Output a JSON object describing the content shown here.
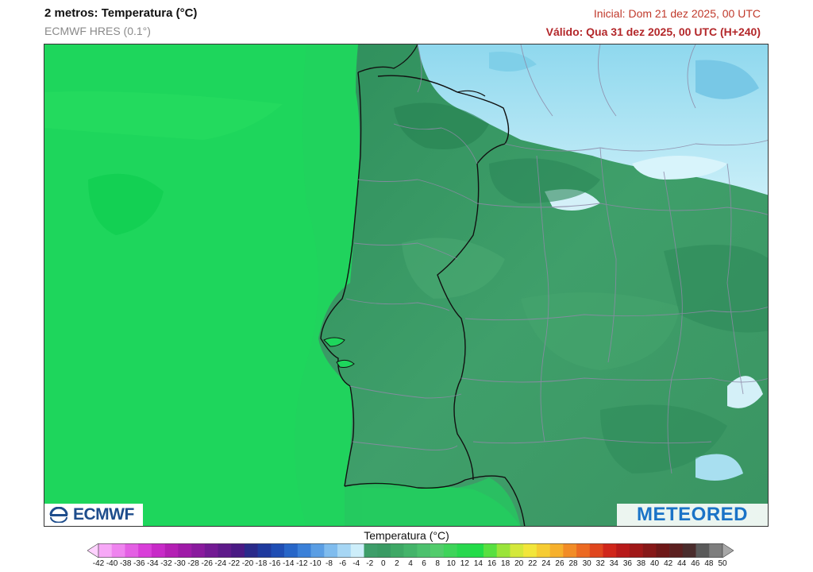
{
  "header": {
    "title": "2 metros: Temperatura (°C)",
    "model": "ECMWF HRES (0.1°)",
    "init": "Inicial: Dom 21 dez 2025, 00 UTC",
    "valid": "Válido: Qua 31 dez 2025, 00 UTC (H+240)"
  },
  "logos": {
    "left": "ECMWF",
    "right": "METEORED"
  },
  "legend": {
    "title": "Temperatura (°C)",
    "values": [
      -42,
      -40,
      -38,
      -36,
      -34,
      -32,
      -30,
      -28,
      -26,
      -24,
      -22,
      -20,
      -18,
      -16,
      -14,
      -12,
      -10,
      -8,
      -6,
      -4,
      -2,
      0,
      2,
      4,
      6,
      8,
      10,
      12,
      14,
      16,
      18,
      20,
      22,
      24,
      26,
      28,
      30,
      32,
      34,
      36,
      38,
      40,
      42,
      44,
      46,
      48,
      50
    ],
    "colors": [
      "#ffd2ff",
      "#f7a8f7",
      "#ef84ef",
      "#e460e4",
      "#d93ed9",
      "#c82ac8",
      "#b41fb4",
      "#9f1aa8",
      "#8a1a9e",
      "#731a94",
      "#5e1a8a",
      "#4a1a84",
      "#2a2a8a",
      "#1f3a9e",
      "#1f4eb4",
      "#2766c8",
      "#3a80d8",
      "#5a9ee4",
      "#7fbcee",
      "#a6d6f4",
      "#cdeefa",
      "#3e9e6a",
      "#3a9b64",
      "#3ea865",
      "#44b46a",
      "#4cc16e",
      "#52cc6c",
      "#3ed45a",
      "#28d84e",
      "#22dc48",
      "#58e040",
      "#9ae43a",
      "#d4e83a",
      "#f2e63a",
      "#f6cc32",
      "#f6b02c",
      "#f28c26",
      "#ec6a22",
      "#e0461e",
      "#d0261a",
      "#b81a1a",
      "#a01818",
      "#861818",
      "#6e1818",
      "#5c2020",
      "#4a2c2c",
      "#5a5a5a",
      "#7e7e7e",
      "#a8a8a8"
    ]
  }
}
